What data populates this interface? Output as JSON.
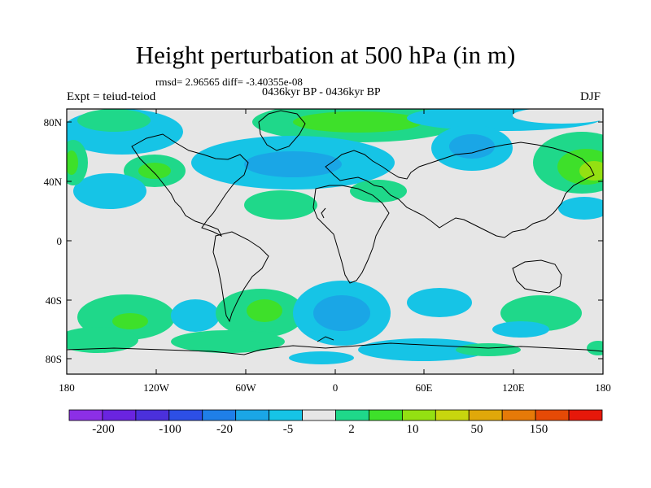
{
  "title": "Height perturbation at 500 hPa (in m)",
  "stats": "rmsd= 2.96565 diff= -3.40355e-08",
  "period": "0436kyr BP - 0436kyr BP",
  "expt": "Expt = teiud-teiod",
  "season": "DJF",
  "lat_ticks": [
    "80N",
    "40N",
    "0",
    "40S",
    "80S"
  ],
  "lon_ticks": [
    "180",
    "120W",
    "60W",
    "0",
    "60E",
    "120E",
    "180"
  ],
  "colorbar": {
    "colors": [
      "#8c2fe6",
      "#6a24e0",
      "#4b30dc",
      "#2d4fe6",
      "#1f7fe8",
      "#1aa6e6",
      "#16c4e6",
      "#e6e6e6",
      "#1fd88a",
      "#3ee02a",
      "#94e012",
      "#c8d60e",
      "#e0a80a",
      "#e67a08",
      "#e64a06",
      "#e6180a"
    ],
    "labels": [
      "-200",
      "-100",
      "-20",
      "-5",
      "2",
      "10",
      "50",
      "150"
    ]
  }
}
